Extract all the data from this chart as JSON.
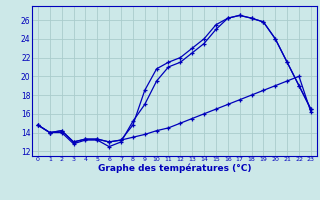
{
  "xlabel": "Graphe des températures (°C)",
  "bg_color": "#cce8e8",
  "grid_color": "#aacccc",
  "line_color": "#0000bb",
  "xlim": [
    -0.5,
    23.5
  ],
  "ylim": [
    11.5,
    27.5
  ],
  "xticks": [
    0,
    1,
    2,
    3,
    4,
    5,
    6,
    7,
    8,
    9,
    10,
    11,
    12,
    13,
    14,
    15,
    16,
    17,
    18,
    19,
    20,
    21,
    22,
    23
  ],
  "yticks": [
    12,
    14,
    16,
    18,
    20,
    22,
    24,
    26
  ],
  "line1_x": [
    0,
    1,
    2,
    3,
    4,
    5,
    6,
    7,
    8,
    9,
    10,
    11,
    12,
    13,
    14,
    15,
    16,
    17,
    18,
    19,
    20,
    21,
    22,
    23
  ],
  "line1_y": [
    14.8,
    14.0,
    14.0,
    12.8,
    13.2,
    13.2,
    12.5,
    13.0,
    15.2,
    17.0,
    19.5,
    21.0,
    21.5,
    22.5,
    23.5,
    25.0,
    26.2,
    26.5,
    26.2,
    25.8,
    24.0,
    21.5,
    19.0,
    16.5
  ],
  "line2_x": [
    0,
    1,
    2,
    3,
    4,
    5,
    6,
    7,
    8,
    9,
    10,
    11,
    12,
    13,
    14,
    15,
    16,
    17,
    18,
    19,
    20,
    21,
    22,
    23
  ],
  "line2_y": [
    14.8,
    14.0,
    14.2,
    13.0,
    13.3,
    13.3,
    13.0,
    13.2,
    14.8,
    18.5,
    20.8,
    21.5,
    22.0,
    23.0,
    24.0,
    25.5,
    26.2,
    26.5,
    26.2,
    25.8,
    24.0,
    21.5,
    19.0,
    16.5
  ],
  "line3_x": [
    0,
    1,
    2,
    3,
    4,
    5,
    6,
    7,
    8,
    9,
    10,
    11,
    12,
    13,
    14,
    15,
    16,
    17,
    18,
    19,
    20,
    21,
    22,
    23
  ],
  "line3_y": [
    14.8,
    14.0,
    14.2,
    13.0,
    13.3,
    13.3,
    13.0,
    13.2,
    13.5,
    13.8,
    14.2,
    14.5,
    15.0,
    15.5,
    16.0,
    16.5,
    17.0,
    17.5,
    18.0,
    18.5,
    19.0,
    19.5,
    20.0,
    16.2
  ]
}
